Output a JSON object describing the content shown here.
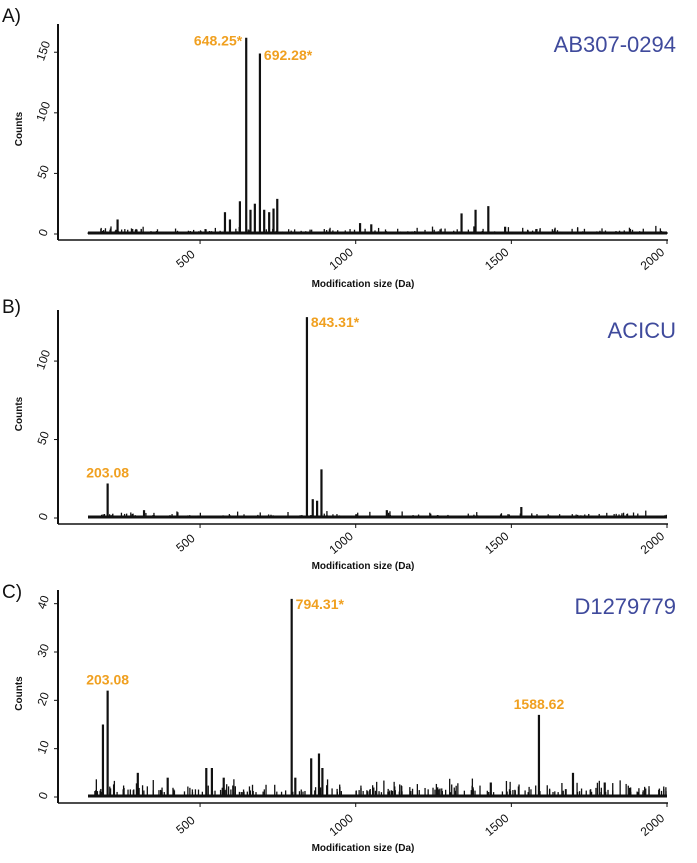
{
  "chart_data": [
    {
      "type": "bar",
      "panel_label": "A)",
      "title": "AB307-0294",
      "xlabel": "Modification size (Da)",
      "ylabel": "Counts",
      "xlim": [
        140,
        2000
      ],
      "ylim": [
        0,
        170
      ],
      "x_ticks": [
        500,
        1000,
        1500,
        2000
      ],
      "y_ticks": [
        0,
        50,
        100,
        150
      ],
      "grid": false,
      "annotations": [
        {
          "x": 648.25,
          "y": 162,
          "text": "648.25*"
        },
        {
          "x": 692.28,
          "y": 150,
          "text": "692.28*"
        }
      ],
      "peaks": [
        {
          "x": 648.25,
          "y": 162
        },
        {
          "x": 692.28,
          "y": 149
        },
        {
          "x": 235,
          "y": 12
        },
        {
          "x": 580,
          "y": 18
        },
        {
          "x": 596,
          "y": 12
        },
        {
          "x": 628,
          "y": 27
        },
        {
          "x": 662,
          "y": 20
        },
        {
          "x": 676,
          "y": 25
        },
        {
          "x": 706,
          "y": 20
        },
        {
          "x": 722,
          "y": 18
        },
        {
          "x": 736,
          "y": 21
        },
        {
          "x": 748,
          "y": 29
        },
        {
          "x": 1014,
          "y": 9
        },
        {
          "x": 1050,
          "y": 8
        },
        {
          "x": 1340,
          "y": 17
        },
        {
          "x": 1385,
          "y": 20
        },
        {
          "x": 1426,
          "y": 23
        },
        {
          "x": 1480,
          "y": 6
        }
      ],
      "noise_seed": 11,
      "noise_max": 6,
      "noise_count": 240
    },
    {
      "type": "bar",
      "panel_label": "B)",
      "title": "ACICU",
      "xlabel": "Modification size (Da)",
      "ylabel": "Counts",
      "xlim": [
        140,
        2000
      ],
      "ylim": [
        0,
        130
      ],
      "x_ticks": [
        500,
        1000,
        1500,
        2000
      ],
      "y_ticks": [
        0,
        50,
        100
      ],
      "grid": false,
      "annotations": [
        {
          "x": 203.08,
          "y": 22,
          "text": "203.08"
        },
        {
          "x": 843.31,
          "y": 128,
          "text": "843.31*"
        }
      ],
      "peaks": [
        {
          "x": 203.08,
          "y": 22
        },
        {
          "x": 843.31,
          "y": 128
        },
        {
          "x": 862,
          "y": 12
        },
        {
          "x": 876,
          "y": 11
        },
        {
          "x": 890,
          "y": 31
        },
        {
          "x": 1532,
          "y": 7
        },
        {
          "x": 320,
          "y": 5
        },
        {
          "x": 1100,
          "y": 5
        }
      ],
      "noise_seed": 23,
      "noise_max": 4,
      "noise_count": 200
    },
    {
      "type": "bar",
      "panel_label": "C)",
      "title": "D1279779",
      "xlabel": "Modification size (Da)",
      "ylabel": "Counts",
      "xlim": [
        140,
        2000
      ],
      "ylim": [
        0,
        42
      ],
      "x_ticks": [
        500,
        1000,
        1500,
        2000
      ],
      "y_ticks": [
        0,
        10,
        20,
        30,
        40
      ],
      "grid": false,
      "annotations": [
        {
          "x": 203.08,
          "y": 22,
          "text": "203.08"
        },
        {
          "x": 794.31,
          "y": 41,
          "text": "794.31*"
        },
        {
          "x": 1588.62,
          "y": 17,
          "text": "1588.62"
        }
      ],
      "peaks": [
        {
          "x": 203.08,
          "y": 22
        },
        {
          "x": 188,
          "y": 15
        },
        {
          "x": 794.31,
          "y": 41
        },
        {
          "x": 1588.62,
          "y": 17
        },
        {
          "x": 300,
          "y": 5
        },
        {
          "x": 396,
          "y": 4
        },
        {
          "x": 520,
          "y": 6
        },
        {
          "x": 538,
          "y": 6
        },
        {
          "x": 576,
          "y": 4
        },
        {
          "x": 806,
          "y": 4
        },
        {
          "x": 857,
          "y": 8
        },
        {
          "x": 882,
          "y": 9
        },
        {
          "x": 893,
          "y": 6
        },
        {
          "x": 1434,
          "y": 3
        },
        {
          "x": 1698,
          "y": 5
        },
        {
          "x": 1800,
          "y": 3
        },
        {
          "x": 1262,
          "y": 2
        }
      ],
      "noise_seed": 41,
      "noise_max": 3,
      "noise_count": 230
    }
  ]
}
